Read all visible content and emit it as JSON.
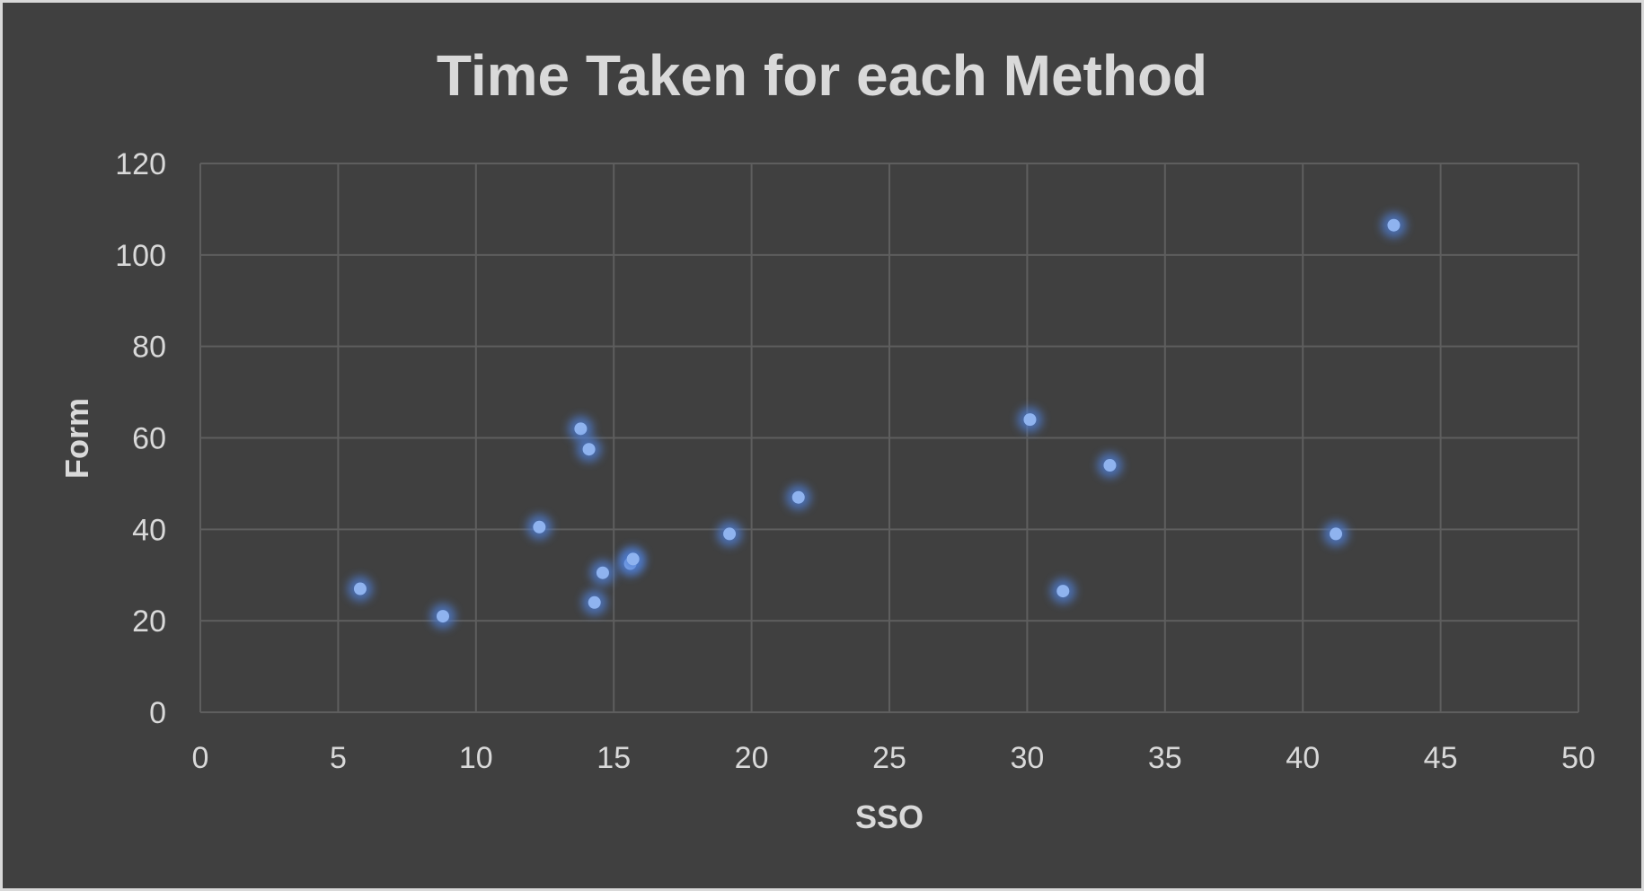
{
  "chart_data": {
    "type": "scatter",
    "title": "Time Taken for each Method",
    "xlabel": "SSO",
    "ylabel": "Form",
    "xlim": [
      0,
      50
    ],
    "ylim": [
      0,
      120
    ],
    "xticks": [
      0,
      5,
      10,
      15,
      20,
      25,
      30,
      35,
      40,
      45,
      50
    ],
    "yticks": [
      0,
      20,
      40,
      60,
      80,
      100,
      120
    ],
    "grid": true,
    "legend": "none",
    "colors": {
      "background": "#404040",
      "border": "#d9d9d9",
      "text": "#d9d9d9",
      "grid": "#5e5e5e",
      "marker": "#8fb3ef",
      "marker_glow": "#4f7fd6"
    },
    "series": [
      {
        "points": [
          {
            "x": 5.8,
            "y": 27
          },
          {
            "x": 8.8,
            "y": 21
          },
          {
            "x": 12.3,
            "y": 40.5
          },
          {
            "x": 13.8,
            "y": 62
          },
          {
            "x": 14.1,
            "y": 57.5
          },
          {
            "x": 14.3,
            "y": 24
          },
          {
            "x": 14.6,
            "y": 30.5
          },
          {
            "x": 15.6,
            "y": 32.5
          },
          {
            "x": 15.7,
            "y": 33.5
          },
          {
            "x": 19.2,
            "y": 39
          },
          {
            "x": 21.7,
            "y": 47
          },
          {
            "x": 30.1,
            "y": 64
          },
          {
            "x": 31.3,
            "y": 26.5
          },
          {
            "x": 33.0,
            "y": 54
          },
          {
            "x": 41.2,
            "y": 39
          },
          {
            "x": 43.3,
            "y": 106.5
          }
        ]
      }
    ]
  }
}
